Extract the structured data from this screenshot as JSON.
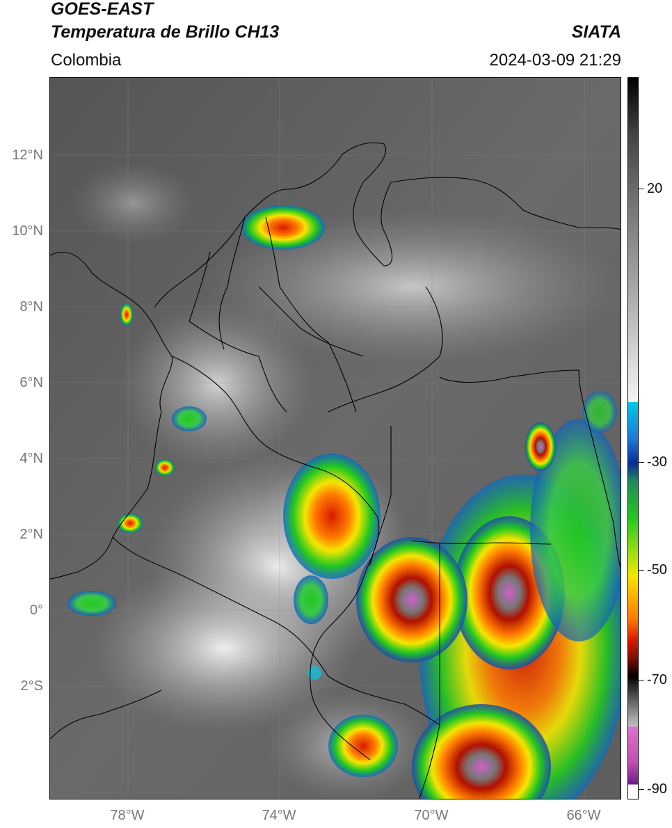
{
  "header": {
    "title_line1": "GOES-EAST",
    "title_line2": "Temperatura de Brillo CH13",
    "region": "Colombia",
    "agency": "SIATA",
    "datetime": "2024-03-09 21:29"
  },
  "map": {
    "lat_labels": [
      "12°N",
      "10°N",
      "8°N",
      "6°N",
      "4°N",
      "2°N",
      "0°",
      "2°S"
    ],
    "lon_labels": [
      "78°W",
      "74°W",
      "70°W",
      "66°W"
    ]
  },
  "colorbar": {
    "labels": [
      "20",
      "-30",
      "-50",
      "-70",
      "-90"
    ],
    "colors": {
      "gray_warm": "#5a5a5a",
      "gray_cold": "#f0f0f0",
      "cyan": "#00c8e6",
      "blue": "#0a2a9a",
      "green": "#22c81e",
      "yellow": "#f5e600",
      "orange": "#ff7a00",
      "red": "#d81a00",
      "black": "#000000",
      "magenta": "#e070d0",
      "purple": "#6a1a8a"
    }
  }
}
